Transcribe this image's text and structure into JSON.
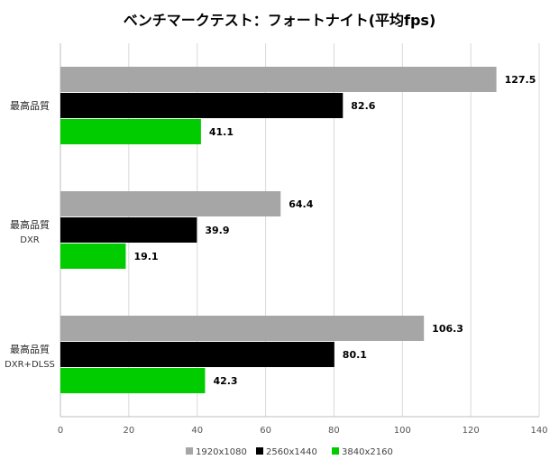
{
  "chart_data": {
    "type": "bar",
    "orientation": "horizontal",
    "title": "ベンチマークテスト：フォートナイト(平均fps)",
    "categories": [
      {
        "label": "最高品質",
        "sublabel": ""
      },
      {
        "label": "最高品質",
        "sublabel": "DXR"
      },
      {
        "label": "最高品質",
        "sublabel": "DXR+DLSS"
      }
    ],
    "series": [
      {
        "name": "1920x1080",
        "color": "#a6a6a6",
        "values": [
          127.5,
          64.4,
          106.3
        ]
      },
      {
        "name": "2560x1440",
        "color": "#000000",
        "values": [
          82.6,
          39.9,
          80.1
        ]
      },
      {
        "name": "3840x2160",
        "color": "#00cc00",
        "values": [
          41.1,
          19.1,
          42.3
        ]
      }
    ],
    "xlim": [
      0,
      140
    ],
    "xticks": [
      0,
      20,
      40,
      60,
      80,
      100,
      120,
      140
    ],
    "xlabel": "",
    "ylabel": "",
    "grid": true,
    "legend_position": "bottom"
  }
}
